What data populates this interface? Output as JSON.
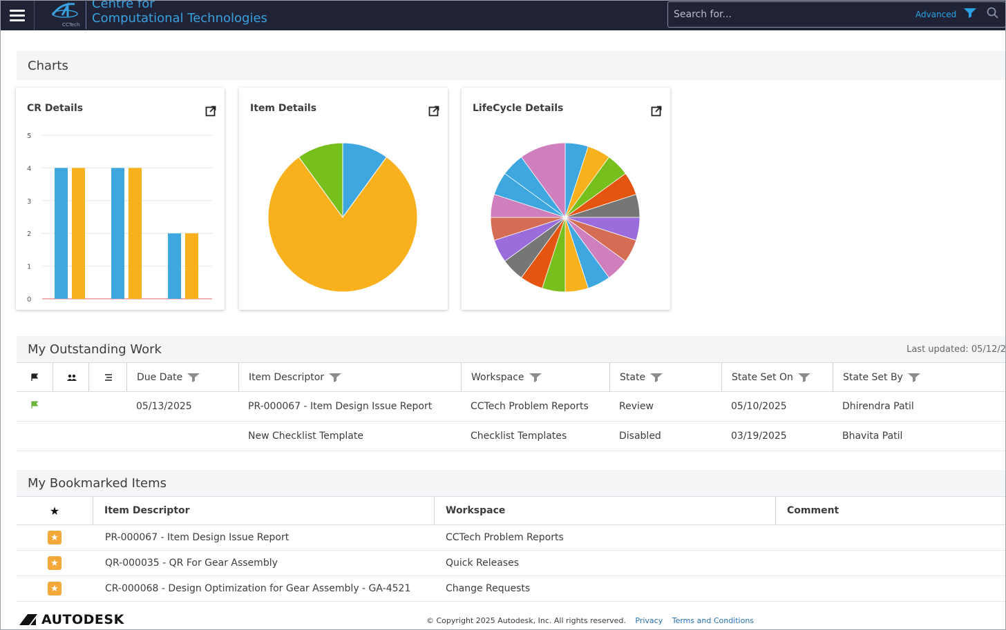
{
  "header": {
    "brand_line1": "Centre for",
    "brand_line2": "Computational Technologies",
    "logo_small_text": "CCTech",
    "search_placeholder": "Search for...",
    "advanced_label": "Advanced"
  },
  "charts_section": {
    "title": "Charts",
    "cards": [
      {
        "title": "CR Details"
      },
      {
        "title": "Item Details"
      },
      {
        "title": "LifeCycle Details"
      }
    ]
  },
  "chart_data": [
    {
      "type": "bar",
      "title": "CR Details",
      "categories": [
        "",
        "",
        ""
      ],
      "series": [
        {
          "values": [
            4,
            4,
            2
          ],
          "color": "#3fa7e0"
        },
        {
          "values": [
            4,
            4,
            2
          ],
          "color": "#f8b01d"
        }
      ],
      "yticks": [
        "0",
        "1",
        "2",
        "3",
        "4",
        "5"
      ],
      "ylim": [
        0,
        5
      ],
      "grid": true
    },
    {
      "type": "pie",
      "title": "Item Details",
      "values": [
        10,
        80,
        10
      ],
      "colors": [
        "#3fa7e0",
        "#f8b01d",
        "#76bf1c"
      ]
    },
    {
      "type": "pie",
      "title": "LifeCycle Details",
      "values": [
        1,
        1,
        1,
        1,
        1,
        1,
        1,
        1,
        1,
        1,
        1,
        1,
        1,
        1,
        1,
        1,
        1,
        1,
        2
      ],
      "colors": [
        "#3fa7e0",
        "#f8b01d",
        "#76bf1c",
        "#e4560f",
        "#767676",
        "#9b6cdb",
        "#d56d55",
        "#cf7fbd",
        "#3fa7e0",
        "#f8b01d",
        "#76bf1c",
        "#e4560f",
        "#767676",
        "#9b6cdb",
        "#d56d55",
        "#cf7fbd",
        "#3fa7e0",
        "#3fa7e0",
        "#cf7fbd"
      ]
    }
  ],
  "outstanding": {
    "title": "My Outstanding Work",
    "last_updated": "Last updated: 05/12/2",
    "columns": [
      "Due Date",
      "Item Descriptor",
      "Workspace",
      "State",
      "State Set On",
      "State Set By"
    ],
    "rows": [
      {
        "flag": true,
        "due": "05/13/2025",
        "item": "PR-000067 - Item Design Issue Report",
        "workspace": "CCTech Problem Reports",
        "state": "Review",
        "set_on": "05/10/2025",
        "set_by": "Dhirendra Patil"
      },
      {
        "flag": false,
        "due": "",
        "item": "New Checklist Template",
        "workspace": "Checklist Templates",
        "state": "Disabled",
        "set_on": "03/19/2025",
        "set_by": "Bhavita Patil"
      }
    ]
  },
  "bookmarks": {
    "title": "My Bookmarked Items",
    "columns": [
      "Item Descriptor",
      "Workspace",
      "Comment"
    ],
    "rows": [
      {
        "item": "PR-000067 - Item Design Issue Report",
        "workspace": "CCTech Problem Reports",
        "comment": ""
      },
      {
        "item": "QR-000035 - QR For Gear Assembly",
        "workspace": "Quick Releases",
        "comment": ""
      },
      {
        "item": "CR-000068 - Design Optimization for Gear Assembly - GA-4521",
        "workspace": "Change Requests",
        "comment": ""
      }
    ]
  },
  "footer": {
    "brand": "AUTODESK",
    "copyright": "© Copyright 2025 Autodesk, Inc. All rights reserved.",
    "privacy": "Privacy",
    "terms": "Terms and Conditions"
  }
}
